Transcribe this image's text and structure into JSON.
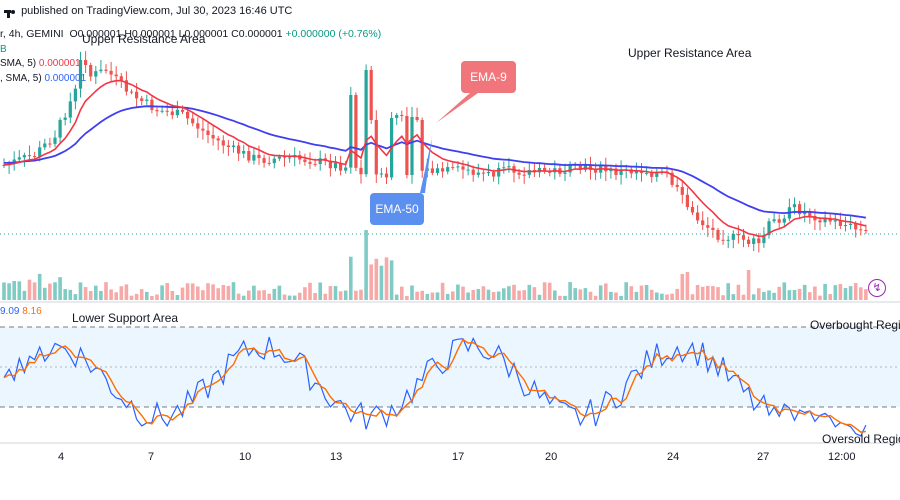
{
  "header": {
    "published": "published on TradingView.com, Jul 30, 2023 16:46 UTC"
  },
  "symbol_line": {
    "prefix": "r, 4h, GEMINI",
    "ohlc": "O0.000001 H0.000001 L0.000001 C0.000001",
    "change": "+0.000000 (+0.76%)"
  },
  "indicators": {
    "b_line": "B",
    "sma1_label": "SMA, 5)",
    "sma1_value": "0.000001",
    "sma2_label": ", SMA, 5)",
    "sma2_value": "0.000001"
  },
  "annotations": {
    "upper_resistance_1": "Upper Resistance Area",
    "upper_resistance_2": "Upper Resistance Area",
    "lower_support": "Lower Support Area",
    "overbought": "Overbought Regi",
    "oversold": "Oversold Regio",
    "ema9": "EMA-9",
    "ema50": "EMA-50"
  },
  "stoch_values": {
    "k": "9.09",
    "d": "8.16"
  },
  "colors": {
    "bull": "#26a69a",
    "bear": "#ef5350",
    "ema9": "#f23645",
    "ema50": "#3f3ff0",
    "stoch_k": "#2962ff",
    "stoch_d": "#ff6d00",
    "stoch_band": "#e3f2fd",
    "vol_bull": "#80cbc4",
    "vol_bear": "#f7a9a7"
  },
  "icons": {
    "tv_logo": "tradingview-logo-icon"
  },
  "chart_data": [
    {
      "type": "line",
      "title": "",
      "xlabel": "",
      "ylabel": "",
      "categories": [
        "4",
        "7",
        "10",
        "13",
        "17",
        "20",
        "24",
        "27",
        "12:00"
      ],
      "series": [
        {
          "name": "EMA-9",
          "values": [
            1.495e-06,
            1.47e-06,
            1.395e-06,
            1.38e-06,
            1.475e-06,
            1.395e-06,
            1.385e-06,
            1.285e-06,
            1.265e-06
          ]
        },
        {
          "name": "EMA-50",
          "values": [
            1.47e-06,
            1.46e-06,
            1.43e-06,
            1.4e-06,
            1.445e-06,
            1.44e-06,
            1.395e-06,
            1.345e-06,
            1.32e-06
          ]
        }
      ]
    },
    {
      "type": "line",
      "title": "",
      "categories": [
        "4",
        "7",
        "10",
        "13",
        "17",
        "20",
        "24",
        "27",
        "12:00"
      ],
      "ylim": [
        0,
        100
      ],
      "overbought_level": 80,
      "middle_level": 50,
      "oversold_level": 20,
      "series": [
        {
          "name": "%K",
          "values": [
            92,
            15,
            40,
            95,
            12,
            55,
            25,
            90,
            9.09
          ]
        },
        {
          "name": "%D",
          "values": [
            88,
            20,
            38,
            88,
            18,
            50,
            28,
            85,
            8.16
          ]
        }
      ]
    }
  ]
}
